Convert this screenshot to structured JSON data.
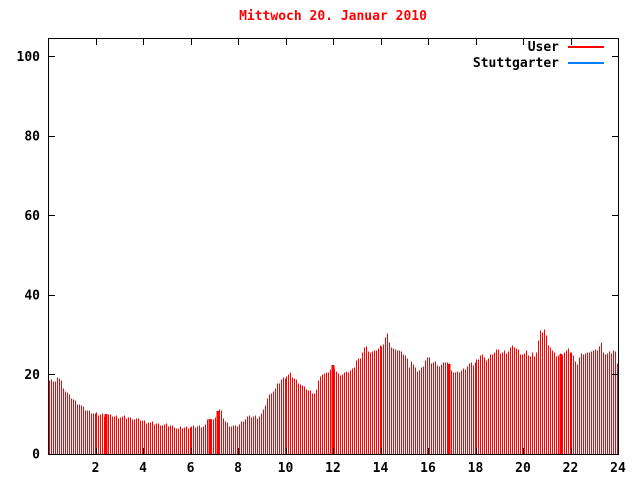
{
  "window": {
    "title": "Mittwoch 20. Januar 2010"
  },
  "colors": {
    "background": "#ffffff",
    "axis": "#000000",
    "title_text": "#ff0000",
    "bar_red": "#ff0000",
    "line_blue": "#0080ff",
    "tick_label": "#000000"
  },
  "legend": {
    "position": "top-right-inside",
    "entries": [
      {
        "label": "User",
        "color": "#ff0000"
      },
      {
        "label": "Stuttgarter",
        "color": "#0080ff"
      }
    ]
  },
  "chart_data": {
    "type": "bar",
    "style": "impulses",
    "title": "Mittwoch 20. Januar 2010",
    "xlabel": "",
    "ylabel": "",
    "x_unit": "hour_of_day",
    "xlim": [
      0,
      24
    ],
    "ylim": [
      0,
      104.6
    ],
    "xticks": [
      2,
      4,
      6,
      8,
      10,
      12,
      14,
      16,
      18,
      20,
      22,
      24
    ],
    "yticks": [
      0,
      20,
      40,
      60,
      80,
      100
    ],
    "grid": "off",
    "sample_interval_minutes": 5,
    "series": [
      {
        "name": "User",
        "color": "#ff0000",
        "style": "impulses",
        "points": [
          [
            0.0,
            18.5
          ],
          [
            0.08,
            19.3
          ],
          [
            0.2,
            18.2
          ],
          [
            0.3,
            18.0
          ],
          [
            0.38,
            19.6
          ],
          [
            0.5,
            19.0
          ],
          [
            0.6,
            17.3
          ],
          [
            0.7,
            16.0
          ],
          [
            0.8,
            15.3
          ],
          [
            0.9,
            14.7
          ],
          [
            1.0,
            14.2
          ],
          [
            1.1,
            13.5
          ],
          [
            1.2,
            13.0
          ],
          [
            1.3,
            12.6
          ],
          [
            1.4,
            12.2
          ],
          [
            1.5,
            11.5
          ],
          [
            1.6,
            11.2
          ],
          [
            1.7,
            10.9
          ],
          [
            1.8,
            10.6
          ],
          [
            1.9,
            10.4
          ],
          [
            2.0,
            10.2
          ],
          [
            2.2,
            10.0
          ],
          [
            2.45,
            10.0
          ],
          [
            2.6,
            9.8
          ],
          [
            3.0,
            9.5
          ],
          [
            3.4,
            9.2
          ],
          [
            3.8,
            8.8
          ],
          [
            4.1,
            8.3
          ],
          [
            4.4,
            7.9
          ],
          [
            4.7,
            7.6
          ],
          [
            5.0,
            7.3
          ],
          [
            5.3,
            7.1
          ],
          [
            5.45,
            6.4
          ],
          [
            5.6,
            6.9
          ],
          [
            6.0,
            6.9
          ],
          [
            6.3,
            7.0
          ],
          [
            6.6,
            7.1
          ],
          [
            6.75,
            8.9
          ],
          [
            6.85,
            8.8
          ],
          [
            6.95,
            8.4
          ],
          [
            7.05,
            9.7
          ],
          [
            7.15,
            10.8
          ],
          [
            7.25,
            11.6
          ],
          [
            7.35,
            9.6
          ],
          [
            7.45,
            8.4
          ],
          [
            7.55,
            7.7
          ],
          [
            7.7,
            7.1
          ],
          [
            7.9,
            7.0
          ],
          [
            8.0,
            7.4
          ],
          [
            8.1,
            8.0
          ],
          [
            8.25,
            8.8
          ],
          [
            8.4,
            9.5
          ],
          [
            8.6,
            9.6
          ],
          [
            8.8,
            9.5
          ],
          [
            9.0,
            10.3
          ],
          [
            9.1,
            12.0
          ],
          [
            9.2,
            14.1
          ],
          [
            9.35,
            15.5
          ],
          [
            9.5,
            16.0
          ],
          [
            9.65,
            17.8
          ],
          [
            9.8,
            18.8
          ],
          [
            10.0,
            19.5
          ],
          [
            10.2,
            20.3
          ],
          [
            10.35,
            19.3
          ],
          [
            10.5,
            18.5
          ],
          [
            10.65,
            17.5
          ],
          [
            10.8,
            16.8
          ],
          [
            10.9,
            16.4
          ],
          [
            11.0,
            16.0
          ],
          [
            11.1,
            15.8
          ],
          [
            11.2,
            15.5
          ],
          [
            11.3,
            16.4
          ],
          [
            11.4,
            19.0
          ],
          [
            11.5,
            20.3
          ],
          [
            11.6,
            20.0
          ],
          [
            11.7,
            20.9
          ],
          [
            11.8,
            20.6
          ],
          [
            11.9,
            21.6
          ],
          [
            12.0,
            22.4
          ],
          [
            12.1,
            21.2
          ],
          [
            12.2,
            20.2
          ],
          [
            12.35,
            20.3
          ],
          [
            12.5,
            20.5
          ],
          [
            12.65,
            20.9
          ],
          [
            12.8,
            21.4
          ],
          [
            12.9,
            22.5
          ],
          [
            13.0,
            24.7
          ],
          [
            13.1,
            23.3
          ],
          [
            13.25,
            26.8
          ],
          [
            13.35,
            27.0
          ],
          [
            13.5,
            26.0
          ],
          [
            13.65,
            25.6
          ],
          [
            13.8,
            26.4
          ],
          [
            13.9,
            26.7
          ],
          [
            14.0,
            27.7
          ],
          [
            14.1,
            27.2
          ],
          [
            14.2,
            29.2
          ],
          [
            14.3,
            30.1
          ],
          [
            14.4,
            27.8
          ],
          [
            14.5,
            26.4
          ],
          [
            14.65,
            26.7
          ],
          [
            14.8,
            25.9
          ],
          [
            15.0,
            25.2
          ],
          [
            15.1,
            24.5
          ],
          [
            15.2,
            22.2
          ],
          [
            15.3,
            23.5
          ],
          [
            15.45,
            21.5
          ],
          [
            15.6,
            21.0
          ],
          [
            15.75,
            22.0
          ],
          [
            15.9,
            24.0
          ],
          [
            16.0,
            24.5
          ],
          [
            16.15,
            22.9
          ],
          [
            16.3,
            23.2
          ],
          [
            16.45,
            22.2
          ],
          [
            16.6,
            22.6
          ],
          [
            16.75,
            23.5
          ],
          [
            16.9,
            22.6
          ],
          [
            17.0,
            20.8
          ],
          [
            17.15,
            20.4
          ],
          [
            17.3,
            20.9
          ],
          [
            17.5,
            21.6
          ],
          [
            17.7,
            22.8
          ],
          [
            17.9,
            22.7
          ],
          [
            18.1,
            24.0
          ],
          [
            18.25,
            25.4
          ],
          [
            18.4,
            23.8
          ],
          [
            18.55,
            24.1
          ],
          [
            18.7,
            25.5
          ],
          [
            18.9,
            26.3
          ],
          [
            19.05,
            25.5
          ],
          [
            19.2,
            26.0
          ],
          [
            19.35,
            25.8
          ],
          [
            19.5,
            27.0
          ],
          [
            19.65,
            27.1
          ],
          [
            19.8,
            26.0
          ],
          [
            20.0,
            25.0
          ],
          [
            20.1,
            25.9
          ],
          [
            20.3,
            24.7
          ],
          [
            20.4,
            25.7
          ],
          [
            20.5,
            24.6
          ],
          [
            20.6,
            27.7
          ],
          [
            20.7,
            30.7
          ],
          [
            20.8,
            31.0
          ],
          [
            20.9,
            31.5
          ],
          [
            21.0,
            28.3
          ],
          [
            21.1,
            27.2
          ],
          [
            21.25,
            25.5
          ],
          [
            21.4,
            24.9
          ],
          [
            21.6,
            25.2
          ],
          [
            21.75,
            26.1
          ],
          [
            21.9,
            26.2
          ],
          [
            22.05,
            25.6
          ],
          [
            22.2,
            23.8
          ],
          [
            22.3,
            22.6
          ],
          [
            22.4,
            24.7
          ],
          [
            22.55,
            25.3
          ],
          [
            22.7,
            25.4
          ],
          [
            22.85,
            26.2
          ],
          [
            23.0,
            25.8
          ],
          [
            23.15,
            26.6
          ],
          [
            23.3,
            28.0
          ],
          [
            23.4,
            25.3
          ],
          [
            23.55,
            25.4
          ],
          [
            23.7,
            25.6
          ],
          [
            23.85,
            26.5
          ],
          [
            23.95,
            23.2
          ]
        ],
        "dense_columns_hours": [
          2.45,
          6.8,
          7.15,
          12.0,
          16.9,
          21.6
        ]
      },
      {
        "name": "Stuttgarter",
        "color": "#0080ff",
        "style": "line",
        "points": []
      }
    ]
  }
}
